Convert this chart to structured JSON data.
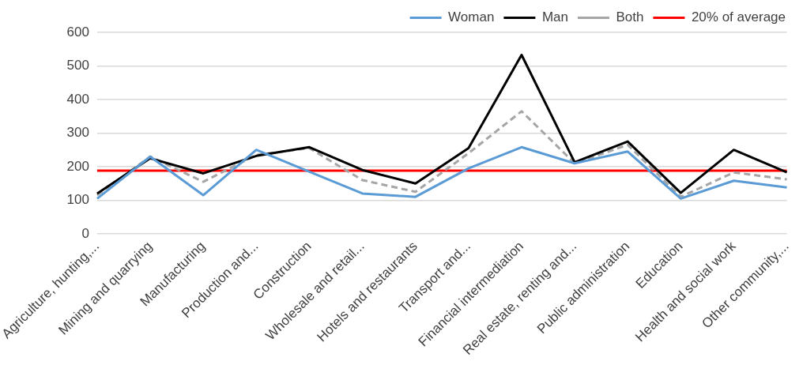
{
  "chart_data": {
    "type": "line",
    "categories": [
      "Agriculture, hunting,...",
      "Mining and quarrying",
      "Manufacturing",
      "Production and...",
      "Construction",
      "Wholesale and retail...",
      "Hotels and restaurants",
      "Transport and...",
      "Financial intermediation",
      "Real estate, renting and...",
      "Public administration",
      "Education",
      "Health and social work",
      "Other community,..."
    ],
    "series": [
      {
        "name": "Woman",
        "color": "#5b9bd5",
        "values": [
          105,
          230,
          115,
          250,
          185,
          120,
          110,
          195,
          258,
          210,
          245,
          105,
          158,
          138
        ]
      },
      {
        "name": "Man",
        "color": "#000000",
        "values": [
          120,
          225,
          180,
          232,
          258,
          190,
          150,
          255,
          533,
          213,
          275,
          122,
          250,
          183
        ]
      },
      {
        "name": "Both",
        "color": "#a5a5a5",
        "line_style": "dashed",
        "values": [
          115,
          230,
          155,
          235,
          255,
          160,
          125,
          240,
          365,
          210,
          265,
          110,
          183,
          162
        ]
      },
      {
        "name": "20% of average",
        "color": "#ff0000",
        "values": [
          188,
          188,
          188,
          188,
          188,
          188,
          188,
          188,
          188,
          188,
          188,
          188,
          188,
          188
        ]
      }
    ],
    "ylim": [
      0,
      600
    ],
    "yticks": [
      0,
      100,
      200,
      300,
      400,
      500,
      600
    ],
    "grid": "y",
    "legend": "top right",
    "marker": "none"
  }
}
